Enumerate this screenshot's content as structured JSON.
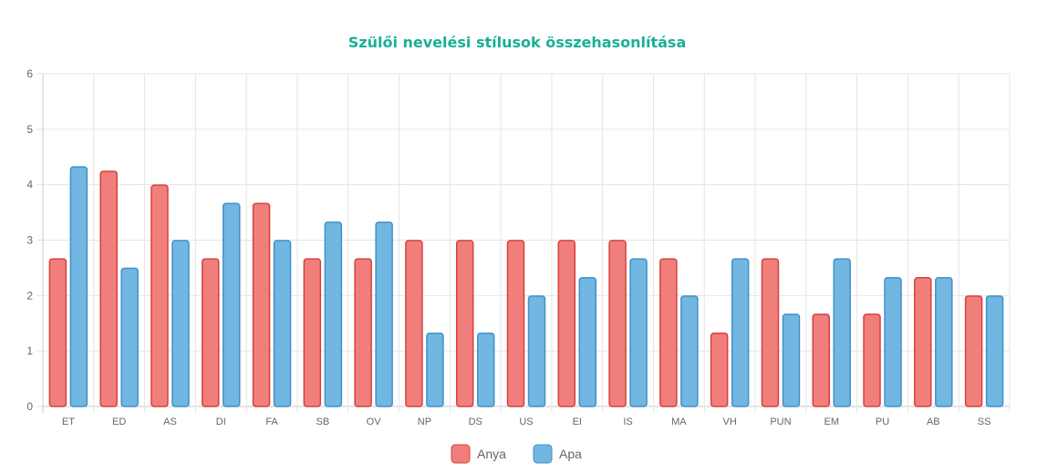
{
  "chart_data": {
    "type": "bar",
    "title": "Szülői nevelési stílusok összehasonlítása",
    "xlabel": "",
    "ylabel": "",
    "ylim": [
      0,
      6
    ],
    "yticks": [
      0,
      1,
      2,
      3,
      4,
      5,
      6
    ],
    "grid": true,
    "legend_position": "bottom",
    "categories": [
      "ET",
      "ED",
      "AS",
      "DI",
      "FA",
      "SB",
      "OV",
      "NP",
      "DS",
      "US",
      "EI",
      "IS",
      "MA",
      "VH",
      "PUN",
      "EM",
      "PU",
      "AB",
      "SS"
    ],
    "series": [
      {
        "name": "Anya",
        "fill": "#f07f7c",
        "stroke": "#d9403c",
        "values": [
          2.67,
          4.25,
          4.0,
          2.67,
          3.67,
          2.67,
          2.67,
          3.0,
          3.0,
          3.0,
          3.0,
          3.0,
          2.67,
          1.33,
          2.67,
          1.67,
          1.67,
          2.33,
          2.0
        ]
      },
      {
        "name": "Apa",
        "fill": "#72b6e2",
        "stroke": "#3f92c9",
        "values": [
          4.33,
          2.5,
          3.0,
          3.67,
          3.0,
          3.33,
          3.33,
          1.33,
          1.33,
          2.0,
          2.33,
          2.67,
          2.0,
          2.67,
          1.67,
          2.67,
          2.33,
          2.33,
          2.0
        ]
      }
    ],
    "colors": {
      "title": "#1aaf98",
      "grid": "#e5e5e5",
      "axis": "#c8c8c8"
    }
  }
}
